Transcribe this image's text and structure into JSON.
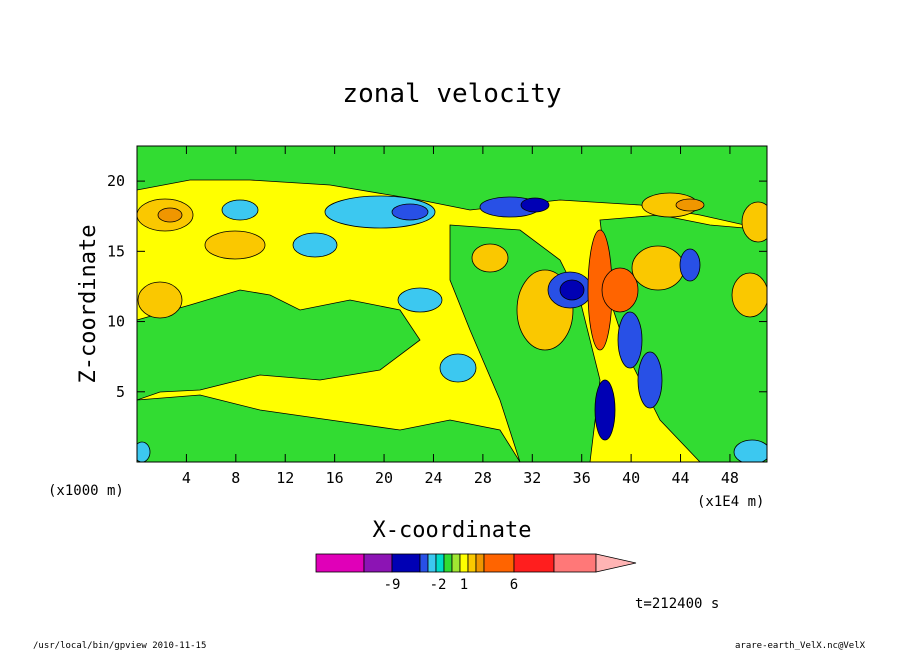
{
  "chart_data": {
    "type": "heatmap",
    "title": "zonal velocity",
    "xlabel": "X-coordinate",
    "ylabel": "Z-coordinate",
    "x_unit": "(x1000 m)",
    "x_scale_note": "(x1E4 m)",
    "xlim": [
      0,
      51
    ],
    "ylim": [
      0,
      22.5
    ],
    "x_ticks": [
      4,
      8,
      12,
      16,
      20,
      24,
      28,
      32,
      36,
      40,
      44,
      48
    ],
    "y_ticks": [
      5,
      10,
      15,
      20
    ],
    "colorbar": {
      "colors": [
        "#e000b8",
        "#8c14b4",
        "#0000b4",
        "#2850e6",
        "#3cc8f0",
        "#00dcc8",
        "#32dc32",
        "#a0e632",
        "#ffff00",
        "#fac800",
        "#f09600",
        "#ff6400",
        "#ff1e1e",
        "#ff7878",
        "#ffb4b4"
      ],
      "labels": [
        {
          "text": "-9",
          "value": -9
        },
        {
          "text": "-2",
          "value": -2
        },
        {
          "text": "1",
          "value": 1
        },
        {
          "text": "6",
          "value": 6
        }
      ]
    },
    "time_label": "t=212400 s"
  },
  "footer": {
    "left": "/usr/local/bin/gpview  2010-11-15",
    "right": "arare-earth_VelX.nc@VelX"
  }
}
